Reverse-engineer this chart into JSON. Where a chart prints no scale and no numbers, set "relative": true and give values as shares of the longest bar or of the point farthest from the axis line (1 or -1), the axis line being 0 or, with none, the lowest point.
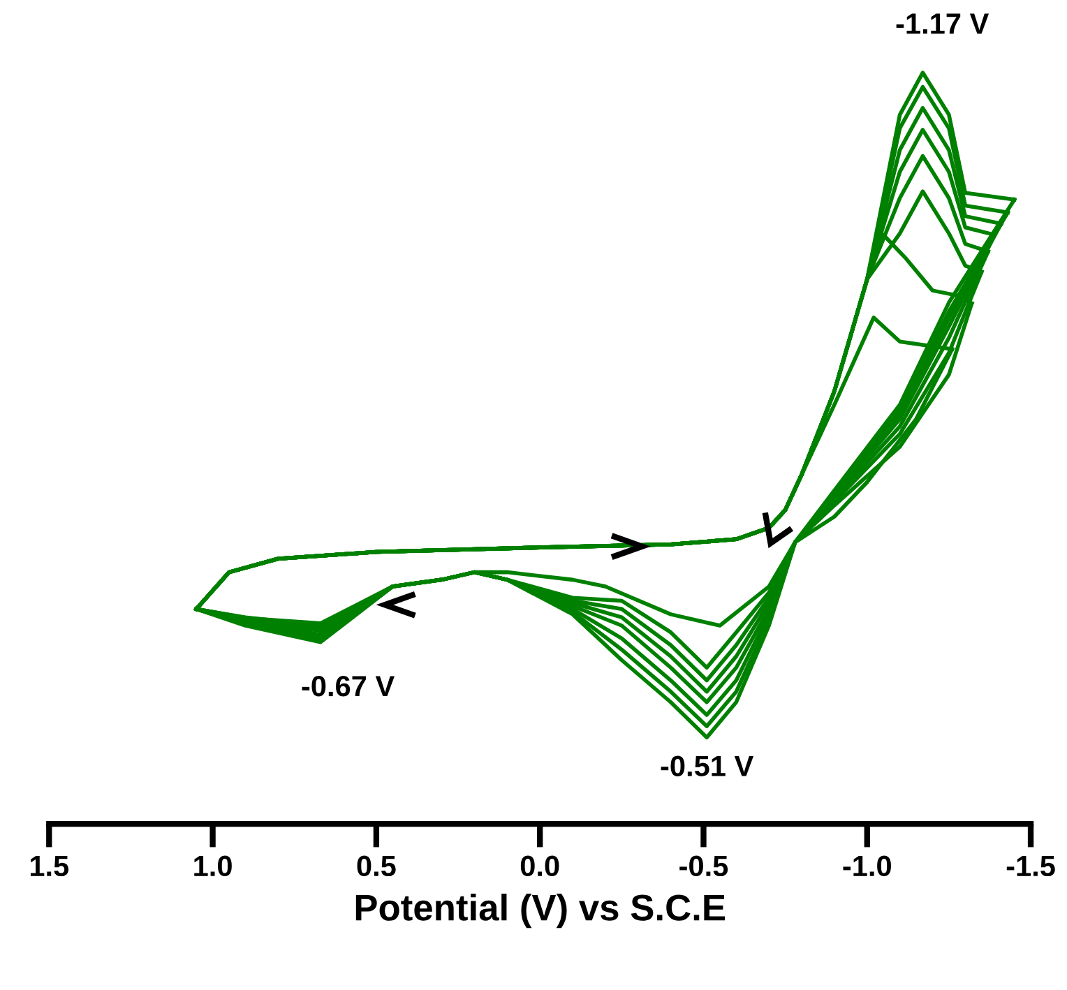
{
  "chart_data": {
    "type": "line",
    "relative": true,
    "xlabel": "Potential (V) vs S.C.E",
    "xlim": [
      1.5,
      -1.5
    ],
    "xticks": [
      1.5,
      {
        "value": 1,
        "label": "1.0"
      },
      0.5,
      {
        "value": 0,
        "label": "0.0"
      },
      -0.5,
      {
        "value": -1,
        "label": "-1.0"
      },
      -1.5
    ],
    "grid": false,
    "legend": false,
    "marker": "none",
    "line_style": "solid",
    "tick_labels": "x",
    "series": [
      {
        "color": "#008000",
        "x": [
          1.05,
          0.95,
          0.8,
          0.5,
          0,
          -0.4,
          -0.6,
          -0.7,
          -0.75,
          -0.8,
          -0.9,
          -1.0,
          -1.1,
          -1.17,
          -1.25,
          -1.3,
          -1.45
        ],
        "values": [
          0.286,
          0.335,
          0.353,
          0.362,
          0.368,
          0.372,
          0.379,
          0.394,
          0.418,
          0.465,
          0.576,
          0.725,
          0.944,
          1.0,
          0.944,
          0.84,
          0.831
        ]
      },
      {
        "color": "#008000",
        "x": [
          -1.45,
          -1.25,
          -1.1,
          -0.9,
          -0.78,
          -0.7,
          -0.6,
          -0.51,
          -0.4,
          -0.25,
          -0.1,
          0.1,
          0.2,
          0.3,
          0.45,
          0.67,
          0.9,
          1.05
        ],
        "values": [
          0.831,
          0.694,
          0.558,
          0.444,
          0.375,
          0.264,
          0.162,
          0.115,
          0.162,
          0.218,
          0.279,
          0.325,
          0.335,
          0.325,
          0.316,
          0.242,
          0.264,
          0.286
        ]
      },
      {
        "color": "#008000",
        "x": [
          1.05,
          0.95,
          0.8,
          0.5,
          0,
          -0.4,
          -0.6,
          -0.7,
          -0.75,
          -0.8,
          -0.9,
          -1.0,
          -1.1,
          -1.17,
          -1.25,
          -1.3,
          -1.43
        ],
        "values": [
          0.286,
          0.335,
          0.353,
          0.362,
          0.368,
          0.372,
          0.379,
          0.394,
          0.418,
          0.465,
          0.576,
          0.725,
          0.926,
          0.981,
          0.926,
          0.823,
          0.814
        ]
      },
      {
        "color": "#008000",
        "x": [
          -1.43,
          -1.25,
          -1.1,
          -0.9,
          -0.78,
          -0.7,
          -0.6,
          -0.51,
          -0.4,
          -0.25,
          -0.1,
          0.1,
          0.2,
          0.3,
          0.45,
          0.67,
          0.9,
          1.05
        ],
        "values": [
          0.814,
          0.682,
          0.551,
          0.441,
          0.375,
          0.271,
          0.176,
          0.13,
          0.176,
          0.232,
          0.282,
          0.325,
          0.335,
          0.325,
          0.316,
          0.245,
          0.266,
          0.286
        ]
      },
      {
        "color": "#008000",
        "x": [
          1.05,
          0.95,
          0.8,
          0.5,
          0,
          -0.4,
          -0.6,
          -0.7,
          -0.75,
          -0.8,
          -0.9,
          -1.0,
          -1.1,
          -1.17,
          -1.25,
          -1.3,
          -1.41
        ],
        "values": [
          0.286,
          0.335,
          0.353,
          0.362,
          0.368,
          0.372,
          0.379,
          0.394,
          0.418,
          0.465,
          0.576,
          0.725,
          0.897,
          0.953,
          0.897,
          0.809,
          0.799
        ]
      },
      {
        "color": "#008000",
        "x": [
          -1.41,
          -1.25,
          -1.1,
          -0.9,
          -0.78,
          -0.7,
          -0.6,
          -0.51,
          -0.4,
          -0.25,
          -0.1,
          0.1,
          0.2,
          0.3,
          0.45,
          0.67,
          0.9,
          1.05
        ],
        "values": [
          0.799,
          0.673,
          0.544,
          0.439,
          0.375,
          0.279,
          0.191,
          0.145,
          0.191,
          0.247,
          0.286,
          0.325,
          0.335,
          0.325,
          0.316,
          0.249,
          0.267,
          0.286
        ]
      },
      {
        "color": "#008000",
        "x": [
          1.05,
          0.95,
          0.8,
          0.5,
          0,
          -0.4,
          -0.6,
          -0.7,
          -0.75,
          -0.8,
          -0.9,
          -1.0,
          -1.1,
          -1.17,
          -1.25,
          -1.3,
          -1.39
        ],
        "values": [
          0.286,
          0.335,
          0.353,
          0.362,
          0.368,
          0.372,
          0.379,
          0.394,
          0.418,
          0.465,
          0.576,
          0.725,
          0.868,
          0.924,
          0.868,
          0.794,
          0.784
        ]
      },
      {
        "color": "#008000",
        "x": [
          -1.39,
          -1.25,
          -1.1,
          -0.9,
          -0.78,
          -0.7,
          -0.6,
          -0.51,
          -0.4,
          -0.25,
          -0.1,
          0.1,
          0.2,
          0.3,
          0.45,
          0.67,
          0.9,
          1.05
        ],
        "values": [
          0.784,
          0.662,
          0.539,
          0.436,
          0.375,
          0.286,
          0.208,
          0.162,
          0.208,
          0.264,
          0.29,
          0.325,
          0.335,
          0.325,
          0.316,
          0.252,
          0.269,
          0.286
        ]
      },
      {
        "color": "#008000",
        "x": [
          1.05,
          0.95,
          0.8,
          0.5,
          0,
          -0.4,
          -0.6,
          -0.7,
          -0.75,
          -0.8,
          -0.9,
          -1.0,
          -1.1,
          -1.17,
          -1.25,
          -1.3,
          -1.37
        ],
        "values": [
          0.286,
          0.335,
          0.353,
          0.362,
          0.368,
          0.372,
          0.379,
          0.394,
          0.418,
          0.465,
          0.576,
          0.725,
          0.833,
          0.889,
          0.833,
          0.772,
          0.762
        ]
      },
      {
        "color": "#008000",
        "x": [
          -1.37,
          -1.25,
          -1.1,
          -0.9,
          -0.78,
          -0.7,
          -0.6,
          -0.51,
          -0.4,
          -0.25,
          -0.1,
          0.1,
          0.2,
          0.3,
          0.45,
          0.67,
          0.9,
          1.05
        ],
        "values": [
          0.762,
          0.647,
          0.529,
          0.433,
          0.375,
          0.294,
          0.223,
          0.176,
          0.223,
          0.275,
          0.294,
          0.325,
          0.335,
          0.325,
          0.316,
          0.257,
          0.271,
          0.286
        ]
      },
      {
        "color": "#008000",
        "x": [
          1.05,
          0.95,
          0.8,
          0.5,
          0,
          -0.4,
          -0.6,
          -0.7,
          -0.75,
          -0.8,
          -0.9,
          -1.0,
          -1.1,
          -1.17,
          -1.25,
          -1.3,
          -1.35
        ],
        "values": [
          0.286,
          0.335,
          0.353,
          0.362,
          0.368,
          0.372,
          0.379,
          0.394,
          0.418,
          0.465,
          0.576,
          0.725,
          0.786,
          0.842,
          0.786,
          0.743,
          0.735
        ]
      },
      {
        "color": "#008000",
        "x": [
          -1.35,
          -1.25,
          -1.1,
          -0.9,
          -0.78,
          -0.7,
          -0.6,
          -0.51,
          -0.4,
          -0.25,
          -0.1,
          0.1,
          0.2,
          0.3,
          0.45,
          0.67,
          0.9,
          1.05
        ],
        "values": [
          0.735,
          0.627,
          0.519,
          0.429,
          0.375,
          0.301,
          0.238,
          0.191,
          0.238,
          0.286,
          0.297,
          0.325,
          0.335,
          0.325,
          0.316,
          0.26,
          0.274,
          0.286
        ]
      },
      {
        "color": "#008000",
        "x": [
          1.05,
          0.95,
          0.8,
          0.5,
          0,
          -0.4,
          -0.6,
          -0.7,
          -0.75,
          -0.8,
          -0.9,
          -1.0,
          -1.05,
          -1.12,
          -1.2,
          -1.28,
          -1.32
        ],
        "values": [
          0.286,
          0.335,
          0.353,
          0.362,
          0.368,
          0.372,
          0.379,
          0.394,
          0.418,
          0.465,
          0.576,
          0.725,
          0.784,
          0.752,
          0.71,
          0.703,
          0.693
        ]
      },
      {
        "color": "#008000",
        "x": [
          -1.32,
          -1.25,
          -1.1,
          -0.9,
          -0.78,
          -0.7,
          -0.6,
          -0.51,
          -0.4,
          -0.25,
          -0.1,
          0.1,
          0.2,
          0.3,
          0.45,
          0.67,
          0.9,
          1.05
        ],
        "values": [
          0.693,
          0.598,
          0.502,
          0.424,
          0.375,
          0.308,
          0.255,
          0.208,
          0.255,
          0.297,
          0.301,
          0.325,
          0.335,
          0.325,
          0.316,
          0.264,
          0.275,
          0.286
        ]
      },
      {
        "color": "#008000",
        "x": [
          1.05,
          0.95,
          0.8,
          0.5,
          0,
          -0.4,
          -0.6,
          -0.7,
          -0.75,
          -0.8,
          -0.9,
          -1.02,
          -1.1,
          -1.26
        ],
        "values": [
          0.286,
          0.335,
          0.353,
          0.362,
          0.368,
          0.372,
          0.379,
          0.394,
          0.418,
          0.465,
          0.558,
          0.674,
          0.642,
          0.632
        ]
      },
      {
        "color": "#008000",
        "x": [
          -1.26,
          -1.15,
          -1.0,
          -0.9,
          -0.78,
          -0.7,
          -0.55,
          -0.4,
          -0.2,
          -0.1,
          0.1,
          0.2,
          0.3,
          0.45,
          0.67,
          0.9,
          1.05
        ],
        "values": [
          0.632,
          0.539,
          0.455,
          0.409,
          0.375,
          0.316,
          0.264,
          0.279,
          0.316,
          0.325,
          0.335,
          0.335,
          0.325,
          0.316,
          0.267,
          0.274,
          0.286
        ]
      }
    ],
    "annotations": [
      {
        "text": "-1.17 V",
        "x": -1.17,
        "y": 1.0
      },
      {
        "text": "-0.67 V",
        "x": 0.67,
        "y": 0.242
      },
      {
        "text": "-0.51 V",
        "x": -0.51,
        "y": 0.115
      }
    ]
  }
}
